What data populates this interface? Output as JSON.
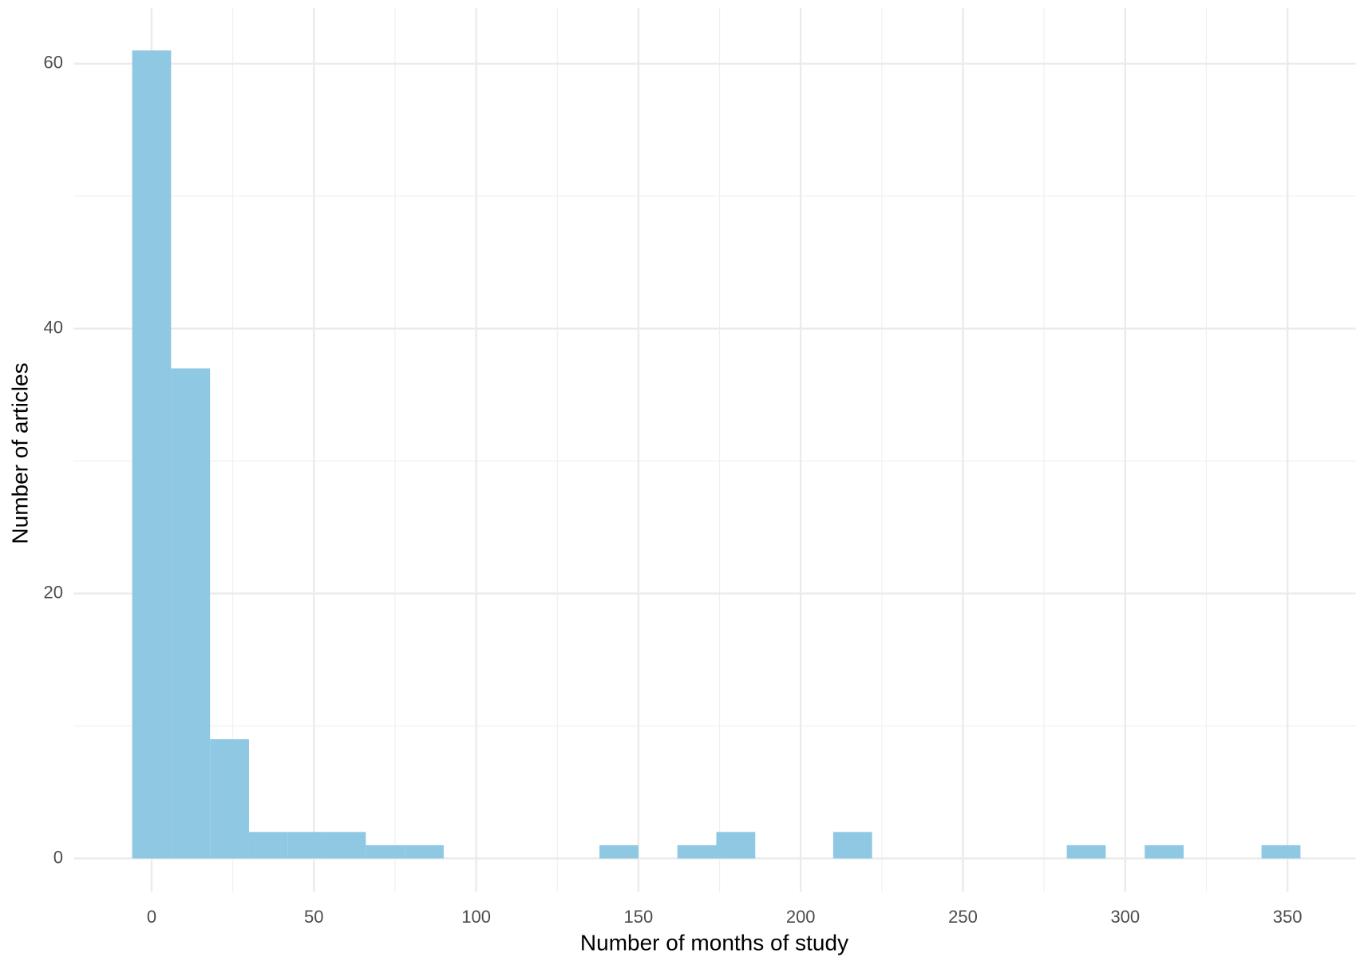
{
  "chart_data": {
    "type": "histogram",
    "x_label": "Number of months of study",
    "y_label": "Number of articles",
    "bins": [
      -6,
      6,
      18,
      30,
      42,
      54,
      66,
      78,
      90,
      102,
      114,
      126,
      138,
      150,
      162,
      174,
      186,
      198,
      210,
      222,
      234,
      246,
      258,
      270,
      282,
      294,
      306,
      318,
      330,
      342,
      354
    ],
    "values": [
      61,
      37,
      9,
      2,
      2,
      2,
      1,
      1,
      0,
      0,
      0,
      0,
      1,
      0,
      1,
      2,
      0,
      0,
      2,
      0,
      0,
      0,
      0,
      0,
      1,
      0,
      1,
      0,
      0,
      1
    ],
    "color": "#8fc8e3",
    "xlim": [
      -24,
      371
    ],
    "xticks": [
      0,
      50,
      100,
      150,
      200,
      250,
      300,
      350
    ],
    "ylim": [
      -2.5,
      64.2
    ],
    "yticks": [
      0,
      20,
      40,
      60
    ],
    "grid": true
  }
}
